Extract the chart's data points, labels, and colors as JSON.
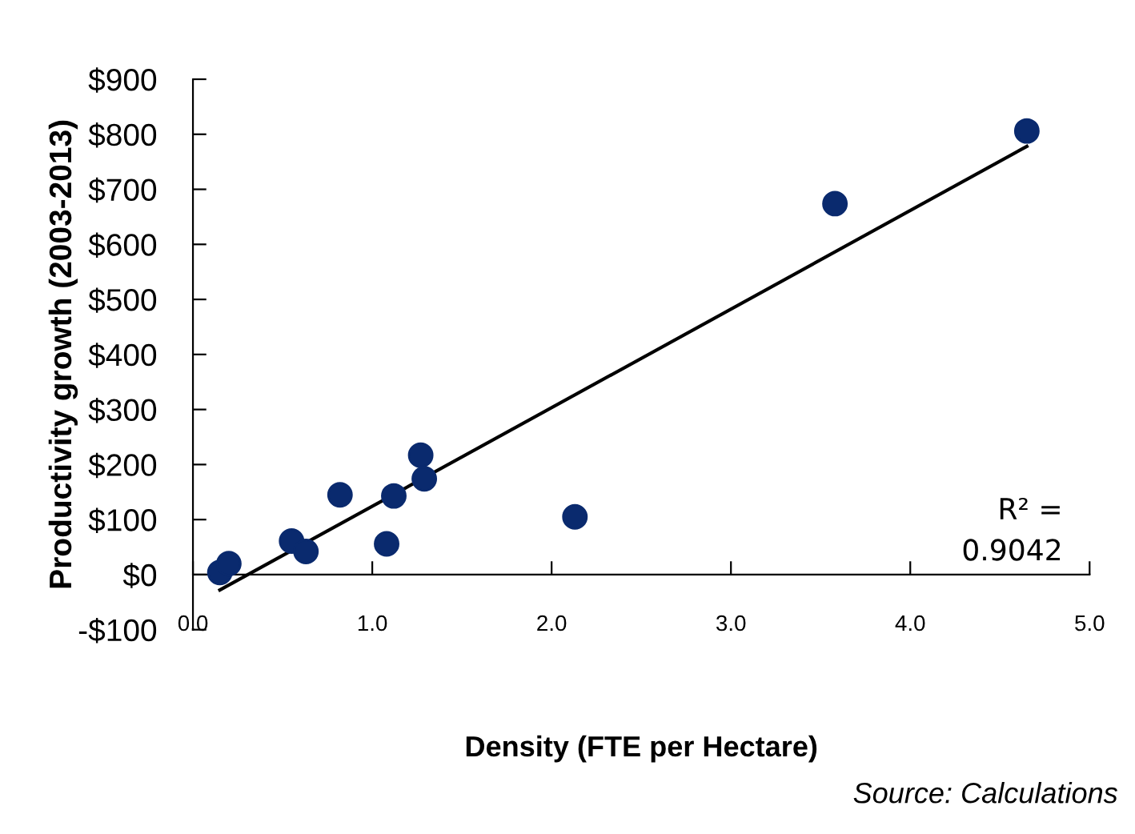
{
  "chart_data": {
    "type": "scatter",
    "xlabel": "Density (FTE per Hectare)",
    "ylabel": "Productivity growth (2003-2013)",
    "annotations": [
      "R² =\n0.9042",
      "Source: Calculations"
    ],
    "xlim": [
      0,
      5
    ],
    "ylim": [
      -100,
      900
    ],
    "xticks": [
      {
        "value": 0,
        "label": "0.0"
      },
      {
        "value": 1,
        "label": "1.0"
      },
      {
        "value": 2,
        "label": "2.0"
      },
      {
        "value": 3,
        "label": "3.0"
      },
      {
        "value": 4,
        "label": "4.0"
      },
      {
        "value": 5,
        "label": "5.0"
      }
    ],
    "yticks": [
      {
        "value": -100,
        "label": "-$100"
      },
      {
        "value": 0,
        "label": "$0"
      },
      {
        "value": 100,
        "label": "$100"
      },
      {
        "value": 200,
        "label": "$200"
      },
      {
        "value": 300,
        "label": "$300"
      },
      {
        "value": 400,
        "label": "$400"
      },
      {
        "value": 500,
        "label": "$500"
      },
      {
        "value": 600,
        "label": "$600"
      },
      {
        "value": 700,
        "label": "$700"
      },
      {
        "value": 800,
        "label": "$800"
      },
      {
        "value": 900,
        "label": "$900"
      }
    ],
    "grid": false,
    "legend": false,
    "series": [
      {
        "marker": "circle",
        "color": "#0a2a6e",
        "x": [
          0.15,
          0.2,
          0.55,
          0.63,
          0.82,
          1.08,
          1.12,
          1.27,
          1.29,
          2.13,
          3.58,
          4.65
        ],
        "values": [
          4,
          20,
          61,
          42,
          145,
          56,
          143,
          217,
          174,
          105,
          674,
          806
        ]
      },
      {
        "type": "line",
        "color": "#000000",
        "line_style": "solid",
        "x": [
          0.15,
          4.65
        ],
        "values": [
          -28,
          778
        ]
      }
    ]
  }
}
